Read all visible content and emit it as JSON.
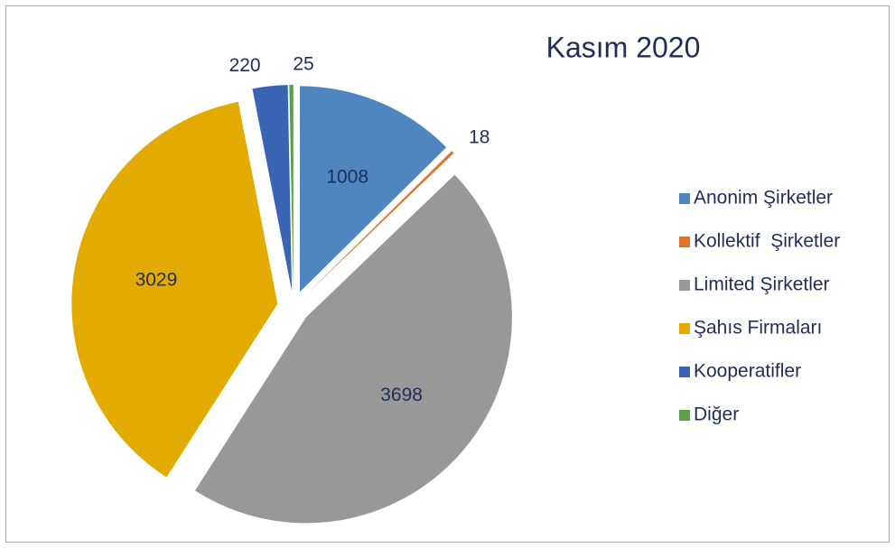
{
  "chart_data": {
    "type": "pie",
    "title": "Kasım 2020",
    "categories": [
      "Anonim Şirketler",
      "Kollektif  Şirketler",
      "Limited Şirketler",
      "Şahıs Firmaları",
      "Kooperatifler",
      "Diğer"
    ],
    "values": [
      1008,
      18,
      3698,
      3029,
      220,
      25
    ],
    "colors": [
      "#4f86c0",
      "#e0732b",
      "#989898",
      "#e3aa00",
      "#3a64b4",
      "#5aa04a"
    ],
    "legend": "right"
  }
}
